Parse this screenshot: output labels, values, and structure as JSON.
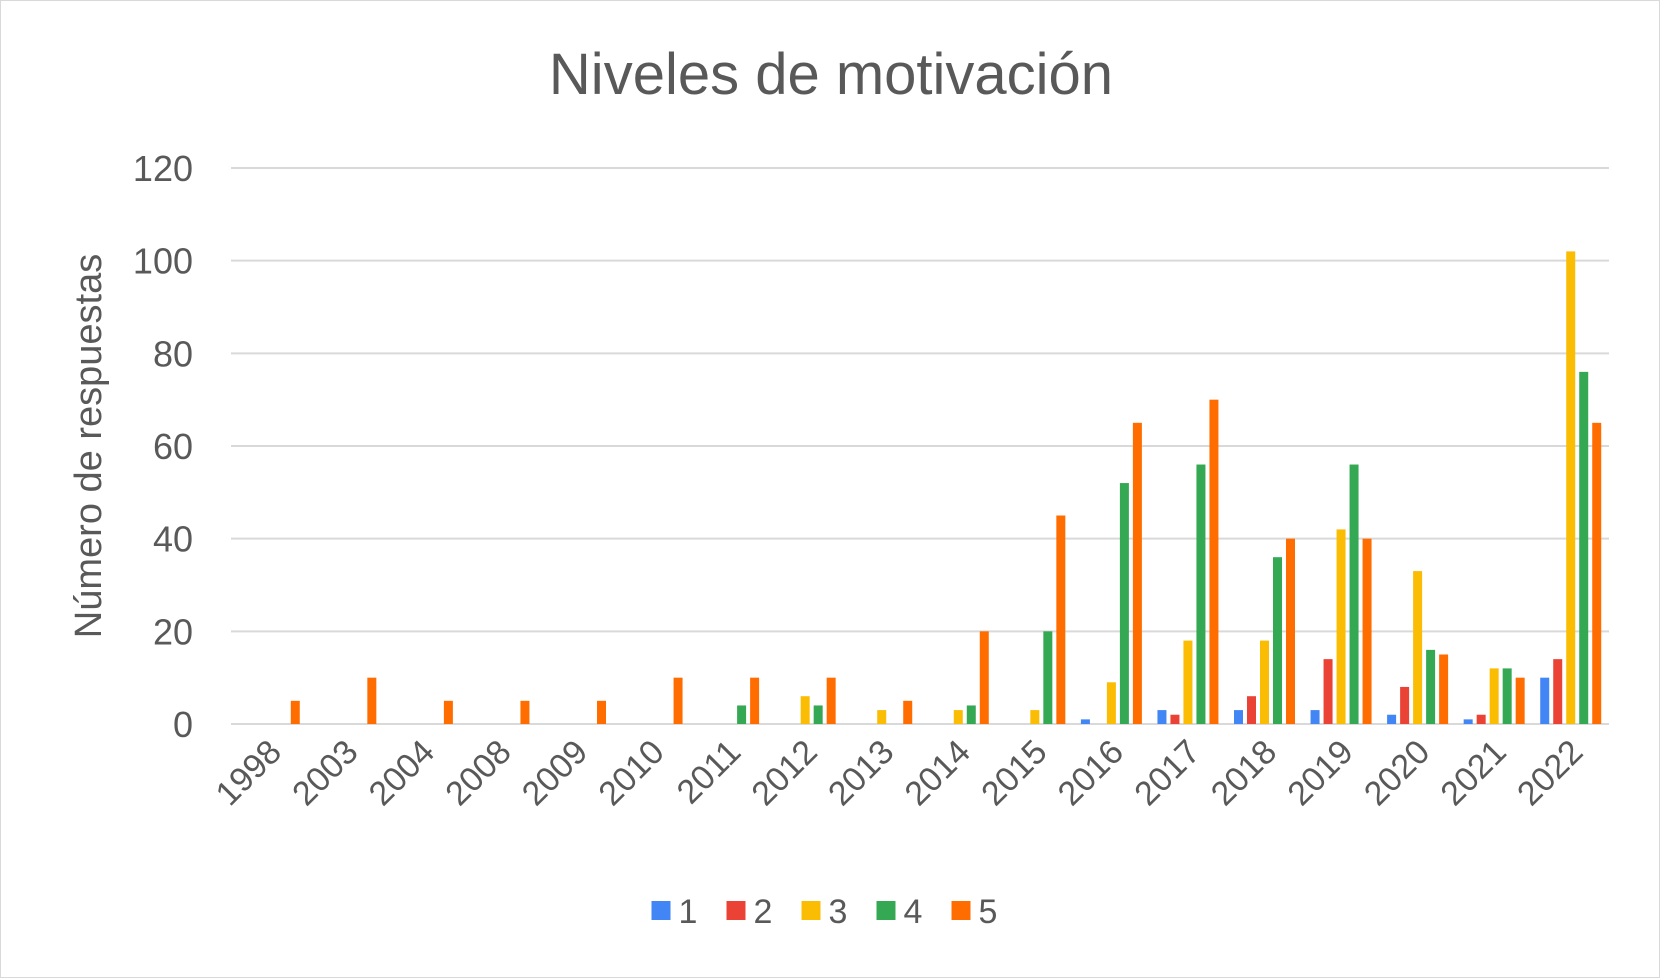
{
  "chart_data": {
    "type": "bar",
    "title": "Niveles de motivación",
    "xlabel": "",
    "ylabel": "Número de respuestas",
    "ylim": [
      0,
      120
    ],
    "yticks": [
      0,
      20,
      40,
      60,
      80,
      100,
      120
    ],
    "grid": true,
    "legend_position": "bottom",
    "categories": [
      "1998",
      "2003",
      "2004",
      "2008",
      "2009",
      "2010",
      "2011",
      "2012",
      "2013",
      "2014",
      "2015",
      "2016",
      "2017",
      "2018",
      "2019",
      "2020",
      "2021",
      "2022"
    ],
    "series": [
      {
        "name": "1",
        "color": "#4285F4",
        "values": [
          0,
          0,
          0,
          0,
          0,
          0,
          0,
          0,
          0,
          0,
          0,
          1,
          3,
          3,
          3,
          2,
          1,
          10
        ]
      },
      {
        "name": "2",
        "color": "#EA4335",
        "values": [
          0,
          0,
          0,
          0,
          0,
          0,
          0,
          0,
          0,
          0,
          0,
          0,
          2,
          6,
          14,
          8,
          2,
          14
        ]
      },
      {
        "name": "3",
        "color": "#FBBC04",
        "values": [
          0,
          0,
          0,
          0,
          0,
          0,
          0,
          6,
          3,
          3,
          3,
          9,
          18,
          18,
          42,
          33,
          12,
          102
        ]
      },
      {
        "name": "4",
        "color": "#34A853",
        "values": [
          0,
          0,
          0,
          0,
          0,
          0,
          4,
          4,
          0,
          4,
          20,
          52,
          56,
          36,
          56,
          16,
          12,
          76
        ]
      },
      {
        "name": "5",
        "color": "#FF6D01",
        "values": [
          5,
          10,
          5,
          5,
          5,
          10,
          10,
          10,
          5,
          20,
          45,
          65,
          70,
          40,
          40,
          15,
          10,
          65
        ]
      }
    ]
  }
}
